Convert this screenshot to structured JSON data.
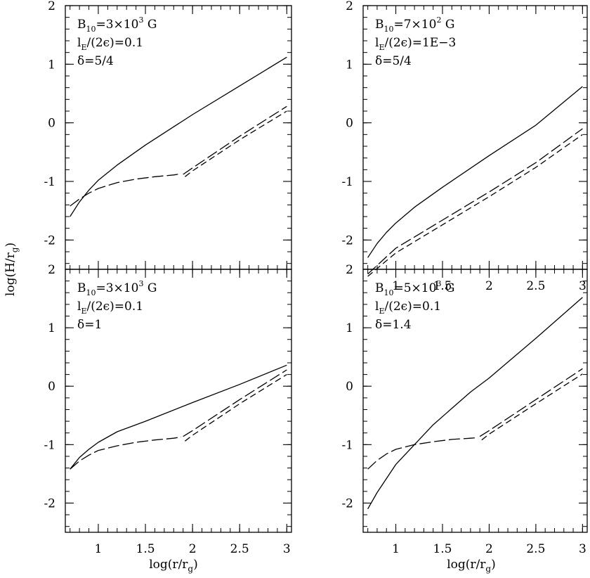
{
  "figure": {
    "ylabel": "log(H/r",
    "ylabel_sub": "g",
    "ylabel_close": ")",
    "xlabel": "log(r/r",
    "xlabel_sub": "g",
    "xlabel_close": ")"
  },
  "chart_data": [
    {
      "type": "line",
      "panel": "top-left",
      "xlim": [
        0.65,
        3.05
      ],
      "ylim": [
        -2.5,
        2.0
      ],
      "xticks": [
        1,
        1.5,
        2,
        2.5,
        3
      ],
      "xtick_labels": [],
      "yticks": [
        -2,
        -1,
        0,
        1,
        2
      ],
      "ytick_labels": [
        "-2",
        "-1",
        "0",
        "1",
        "2"
      ],
      "annotations": [
        {
          "main": "B",
          "sub": "10",
          "rest": "=3×10",
          "sup": "3",
          "tail": " G"
        },
        {
          "main": "l",
          "sub": "E",
          "rest": "/(2ϵ)=0.1",
          "sup": "",
          "tail": ""
        },
        {
          "main": "δ",
          "sub": "",
          "rest": "=5/4",
          "sup": "",
          "tail": ""
        }
      ],
      "series": [
        {
          "style": "solid",
          "x": [
            0.7,
            0.8,
            0.9,
            1.0,
            1.2,
            1.5,
            2.0,
            2.5,
            3.0
          ],
          "y": [
            -1.6,
            -1.35,
            -1.15,
            -0.98,
            -0.72,
            -0.38,
            0.14,
            0.63,
            1.12
          ]
        },
        {
          "style": "long-dash",
          "x": [
            0.7,
            0.8,
            0.9,
            1.0,
            1.2,
            1.4,
            1.6,
            1.8,
            1.88
          ],
          "y": [
            -1.42,
            -1.3,
            -1.2,
            -1.12,
            -1.02,
            -0.96,
            -0.92,
            -0.89,
            -0.87
          ]
        },
        {
          "style": "long-dash",
          "x": [
            1.9,
            2.0,
            2.5,
            3.0
          ],
          "y": [
            -0.88,
            -0.77,
            -0.23,
            0.28
          ]
        },
        {
          "style": "short-dash",
          "x": [
            1.92,
            2.0,
            2.5,
            3.0
          ],
          "y": [
            -0.92,
            -0.82,
            -0.29,
            0.2
          ]
        }
      ]
    },
    {
      "type": "line",
      "panel": "top-right",
      "xlim": [
        0.65,
        3.05
      ],
      "ylim": [
        -2.5,
        2.0
      ],
      "xticks": [
        1,
        1.5,
        2,
        2.5,
        3
      ],
      "xtick_labels": [
        "1",
        "1.5",
        "2",
        "2.5",
        "3"
      ],
      "yticks": [
        -2,
        -1,
        0,
        1,
        2
      ],
      "ytick_labels": [
        "-2",
        "-1",
        "0",
        "1",
        "2"
      ],
      "annotations": [
        {
          "main": "B",
          "sub": "10",
          "rest": "=7×10",
          "sup": "2",
          "tail": " G"
        },
        {
          "main": "l",
          "sub": "E",
          "rest": "/(2ϵ)=1E−3",
          "sup": "",
          "tail": ""
        },
        {
          "main": "δ",
          "sub": "",
          "rest": "=5/4",
          "sup": "",
          "tail": ""
        }
      ],
      "series": [
        {
          "style": "solid",
          "x": [
            0.7,
            0.8,
            0.9,
            1.0,
            1.2,
            1.5,
            2.0,
            2.5,
            3.0
          ],
          "y": [
            -2.3,
            -2.06,
            -1.87,
            -1.71,
            -1.44,
            -1.1,
            -0.56,
            -0.04,
            0.62
          ]
        },
        {
          "style": "long-dash",
          "x": [
            0.7,
            1.0,
            1.5,
            2.0,
            2.5,
            3.0
          ],
          "y": [
            -2.58,
            -2.14,
            -1.66,
            -1.18,
            -0.68,
            -0.1
          ]
        },
        {
          "style": "short-dash",
          "x": [
            0.7,
            1.0,
            1.5,
            2.0,
            2.5,
            3.0
          ],
          "y": [
            -2.62,
            -2.22,
            -1.74,
            -1.26,
            -0.76,
            -0.2
          ]
        }
      ]
    },
    {
      "type": "line",
      "panel": "bottom-left",
      "xlim": [
        0.65,
        3.05
      ],
      "ylim": [
        -2.5,
        2.0
      ],
      "xticks": [
        1,
        1.5,
        2,
        2.5,
        3
      ],
      "xtick_labels": [
        "1",
        "1.5",
        "2",
        "2.5",
        "3"
      ],
      "yticks": [
        -2,
        -1,
        0,
        1,
        2
      ],
      "ytick_labels": [
        "-2",
        "-1",
        "0",
        "1",
        "2"
      ],
      "annotations": [
        {
          "main": "B",
          "sub": "10",
          "rest": "=3×10",
          "sup": "3",
          "tail": " G"
        },
        {
          "main": "l",
          "sub": "E",
          "rest": "/(2ϵ)=0.1",
          "sup": "",
          "tail": ""
        },
        {
          "main": "δ",
          "sub": "",
          "rest": "=1",
          "sup": "",
          "tail": ""
        }
      ],
      "series": [
        {
          "style": "solid",
          "x": [
            0.7,
            0.8,
            0.9,
            1.0,
            1.2,
            1.5,
            2.0,
            2.5,
            3.0
          ],
          "y": [
            -1.42,
            -1.22,
            -1.08,
            -0.96,
            -0.78,
            -0.6,
            -0.28,
            0.03,
            0.36
          ]
        },
        {
          "style": "long-dash",
          "x": [
            0.7,
            0.8,
            0.9,
            1.0,
            1.2,
            1.4,
            1.6,
            1.8,
            1.88
          ],
          "y": [
            -1.42,
            -1.28,
            -1.18,
            -1.1,
            -1.02,
            -0.96,
            -0.92,
            -0.89,
            -0.87
          ]
        },
        {
          "style": "long-dash",
          "x": [
            1.9,
            2.0,
            2.5,
            3.0
          ],
          "y": [
            -0.86,
            -0.76,
            -0.23,
            0.28
          ]
        },
        {
          "style": "short-dash",
          "x": [
            1.92,
            2.0,
            2.5,
            3.0
          ],
          "y": [
            -0.94,
            -0.84,
            -0.3,
            0.2
          ]
        }
      ]
    },
    {
      "type": "line",
      "panel": "bottom-right",
      "xlim": [
        0.65,
        3.05
      ],
      "ylim": [
        -2.5,
        2.0
      ],
      "xticks": [
        1,
        1.5,
        2,
        2.5,
        3
      ],
      "xtick_labels": [
        "1",
        "1.5",
        "2",
        "2.5",
        "3"
      ],
      "yticks": [
        -2,
        -1,
        0,
        1,
        2
      ],
      "ytick_labels": [
        "-2",
        "-1",
        "0",
        "1",
        "2"
      ],
      "annotations": [
        {
          "main": "B",
          "sub": "10",
          "rest": "=5×10",
          "sup": "3",
          "tail": " G"
        },
        {
          "main": "l",
          "sub": "E",
          "rest": "/(2ϵ)=0.1",
          "sup": "",
          "tail": ""
        },
        {
          "main": "δ",
          "sub": "",
          "rest": "=1.4",
          "sup": "",
          "tail": ""
        }
      ],
      "series": [
        {
          "style": "solid",
          "x": [
            0.7,
            0.8,
            1.0,
            1.2,
            1.4,
            1.6,
            1.8,
            2.0,
            2.5,
            3.0
          ],
          "y": [
            -2.1,
            -1.82,
            -1.34,
            -1.0,
            -0.66,
            -0.38,
            -0.1,
            0.14,
            0.82,
            1.52
          ]
        },
        {
          "style": "long-dash",
          "x": [
            0.7,
            0.8,
            0.9,
            1.0,
            1.2,
            1.4,
            1.6,
            1.8,
            1.88
          ],
          "y": [
            -1.42,
            -1.27,
            -1.16,
            -1.08,
            -1.0,
            -0.95,
            -0.91,
            -0.89,
            -0.88
          ]
        },
        {
          "style": "long-dash",
          "x": [
            1.9,
            2.0,
            2.5,
            3.0
          ],
          "y": [
            -0.86,
            -0.76,
            -0.23,
            0.3
          ]
        },
        {
          "style": "short-dash",
          "x": [
            1.92,
            2.0,
            2.5,
            3.0
          ],
          "y": [
            -0.92,
            -0.82,
            -0.3,
            0.21
          ]
        }
      ]
    }
  ]
}
